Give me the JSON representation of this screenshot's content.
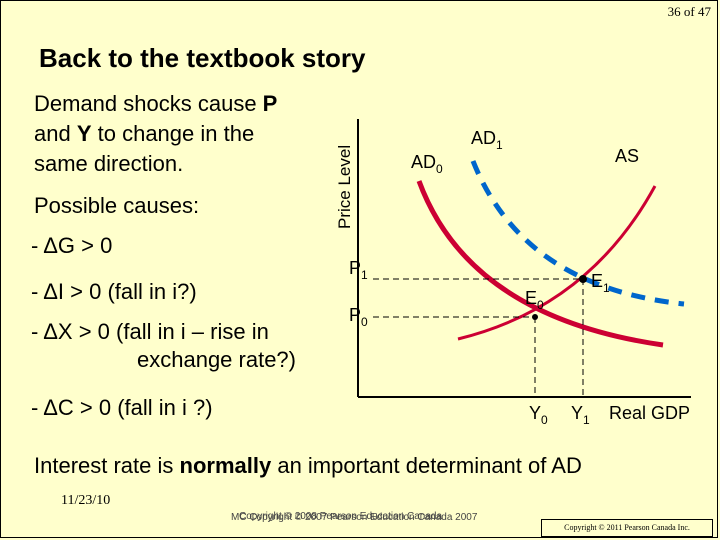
{
  "page_number": "36 of 47",
  "title": "Back to the textbook story",
  "body": {
    "intro_line1_pre": "Demand shocks cause ",
    "intro_line1_p": "P",
    "intro_line2_pre": "and ",
    "intro_line2_y": "Y",
    "intro_line2_post": " to change in the",
    "intro_line3": "same direction.",
    "possible_causes": "Possible causes:",
    "causes": [
      "- ΔG > 0",
      "- ΔI > 0 (fall in i?)",
      "- ΔX > 0 (fall in i – rise in",
      "exchange rate?)",
      "- ΔC > 0 (fall in i ?)"
    ],
    "bottom_pre": "Interest rate is ",
    "bottom_bold": "normally",
    "bottom_post": " an important determinant of AD"
  },
  "diagram": {
    "y_axis_label": "Price Level",
    "x_axis_label": "Real GDP",
    "ad0_label": "AD",
    "ad0_sub": "0",
    "ad1_label": "AD",
    "ad1_sub": "1",
    "as_label": "AS",
    "p1_label": "P",
    "p1_sub": "1",
    "p0_label": "P",
    "p0_sub": "0",
    "e0_label": "E",
    "e0_sub": "0",
    "e1_label": "E",
    "e1_sub": "1",
    "y0_label": "Y",
    "y0_sub": "0",
    "y1_label": "Y",
    "y1_sub": "1",
    "colors": {
      "ad0": "#cc0033",
      "ad1": "#0066cc",
      "as": "#cc0033",
      "axis": "#000000",
      "guides": "#000000"
    }
  },
  "footer": {
    "date": "11/23/10",
    "copyright_overlap_a": "Copyright © 2008 Pearson Education Canada",
    "copyright_overlap_b": "MC Copyright © 2007 Pearson Education Canada 2007",
    "copyright_box": "Copyright © 2011 Pearson Canada Inc."
  }
}
